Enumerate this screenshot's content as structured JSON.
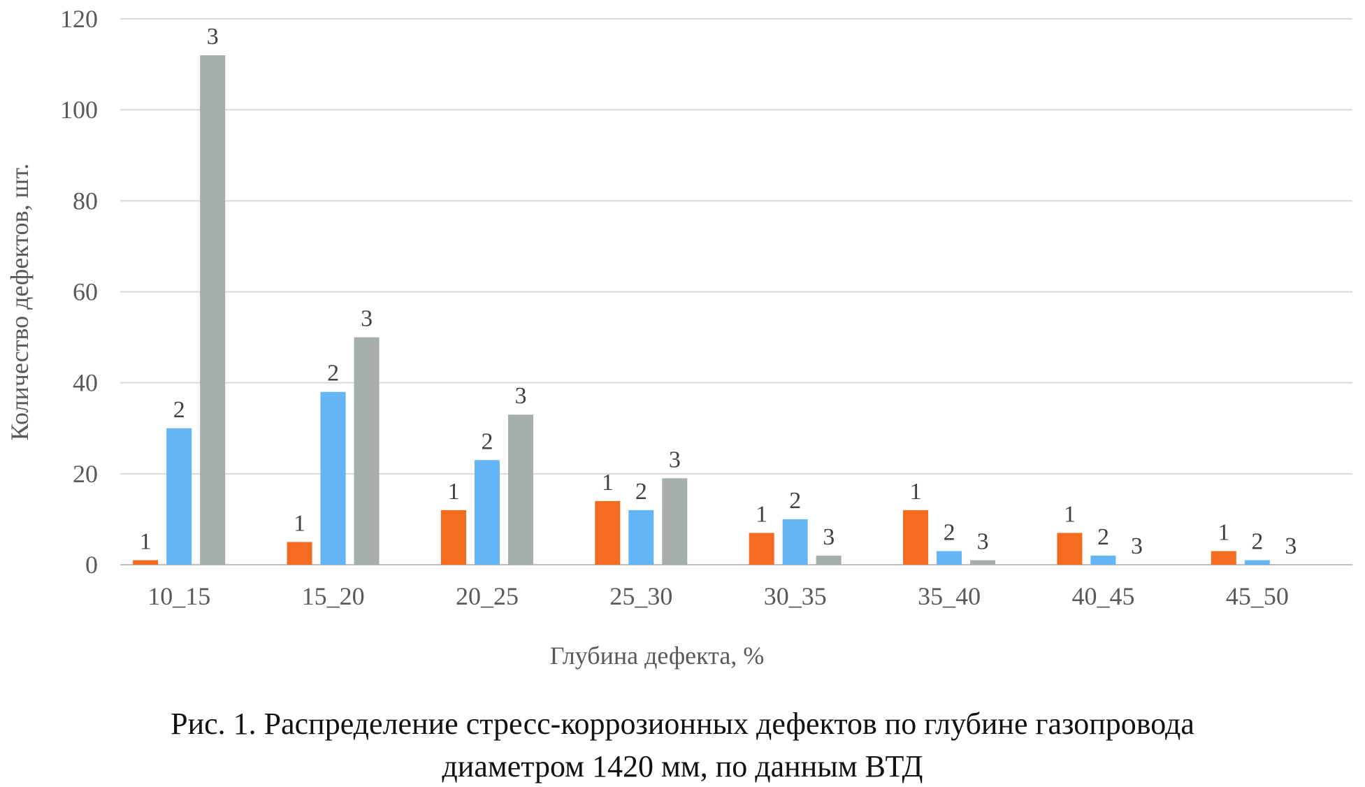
{
  "chart_data": {
    "type": "bar",
    "categories": [
      "10_15",
      "15_20",
      "20_25",
      "25_30",
      "30_35",
      "35_40",
      "40_45",
      "45_50"
    ],
    "series": [
      {
        "name": "1",
        "color": "#f26b1f",
        "values": [
          1,
          5,
          12,
          14,
          7,
          12,
          7,
          3
        ]
      },
      {
        "name": "2",
        "color": "#64b5f6",
        "values": [
          30,
          38,
          23,
          12,
          10,
          3,
          2,
          1
        ]
      },
      {
        "name": "3",
        "color": "#a5adad",
        "values": [
          112,
          50,
          33,
          19,
          2,
          1,
          0,
          0
        ]
      }
    ],
    "xlabel": "Глубина дефекта, %",
    "ylabel": "Количество дефектов, шт.",
    "ylim": [
      0,
      120
    ],
    "yticks": [
      0,
      20,
      40,
      60,
      80,
      100,
      120
    ],
    "grid": true,
    "legend": "none"
  },
  "caption": {
    "line1": "Рис. 1. Распределение стресс-коррозионных дефектов по глубине газопровода",
    "line2": "диаметром 1420 мм, по данным ВТД"
  }
}
